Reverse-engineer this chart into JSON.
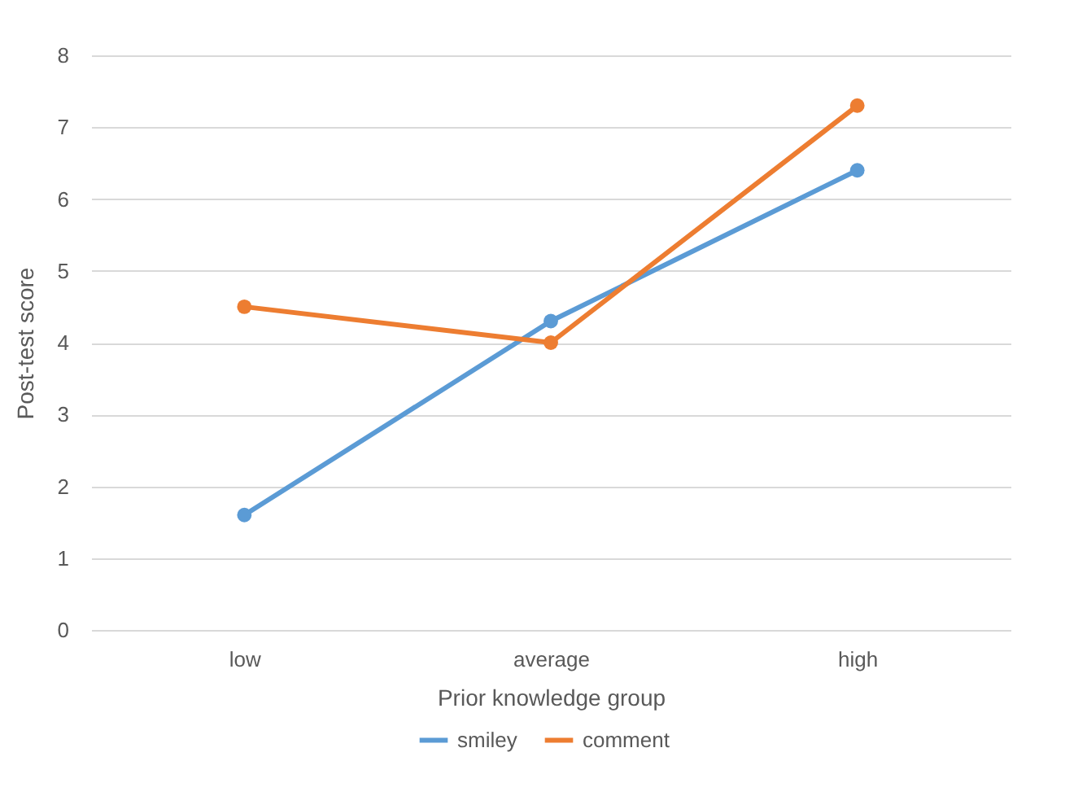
{
  "chart_data": {
    "type": "line",
    "xlabel": "Prior knowledge group",
    "ylabel": "Post-test score",
    "categories": [
      "low",
      "average",
      "high"
    ],
    "series": [
      {
        "name": "smiley",
        "color": "#5b9bd5",
        "values": [
          1.6,
          4.3,
          6.4
        ]
      },
      {
        "name": "comment",
        "color": "#ed7d31",
        "values": [
          4.5,
          4.0,
          7.3
        ]
      }
    ],
    "ylim": [
      0,
      8
    ],
    "yticks": [
      0,
      1,
      2,
      3,
      4,
      5,
      6,
      7,
      8
    ],
    "grid": "y",
    "legend": "bottom",
    "marker": "circle",
    "line_style": "solid"
  }
}
